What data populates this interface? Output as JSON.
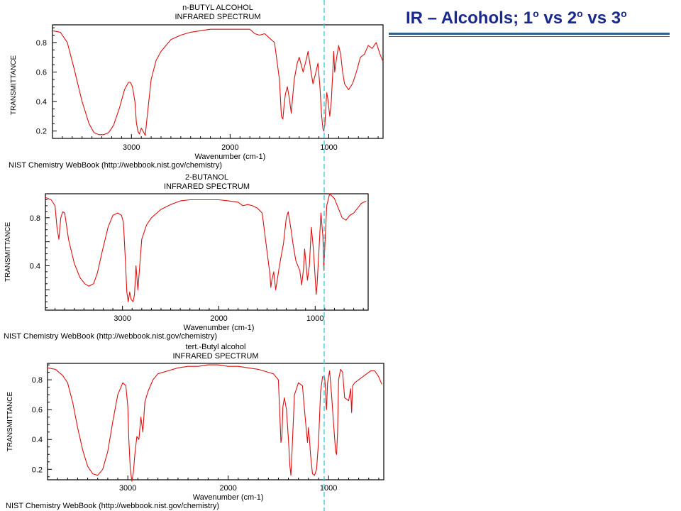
{
  "slide": {
    "title_main": "IR – Alcohols; 1",
    "title_sup1": "o",
    "title_mid1": " vs 2",
    "title_sup2": "o",
    "title_mid2": " vs 3",
    "title_sup3": "o",
    "accent_color": "#1a2a8c",
    "rule_color": "#2f5f8a",
    "marker_line": {
      "wavenumber": 1000,
      "color": "#2ec9d6",
      "style": "dashed"
    }
  },
  "chart_data": [
    {
      "type": "line",
      "title": "n-BUTYL ALCOHOL",
      "subtitle": "INFRARED SPECTRUM",
      "xlabel": "Wavenumber (cm-1)",
      "ylabel": "TRANSMITTANCE",
      "source": "NIST Chemistry WebBook (http://webbook.nist.gov/chemistry)",
      "xlim": [
        3800,
        450
      ],
      "ylim": [
        0.15,
        0.92
      ],
      "xticks": [
        3000,
        2000,
        1000
      ],
      "yticks": [
        0.2,
        0.4,
        0.6,
        0.8
      ],
      "ytick_labels": [
        "0.2",
        "0.4",
        "0.6",
        "0.8"
      ],
      "line_color": "#dd1111",
      "x": [
        3800,
        3720,
        3650,
        3580,
        3500,
        3430,
        3380,
        3330,
        3280,
        3230,
        3180,
        3120,
        3070,
        3030,
        3010,
        2990,
        2965,
        2950,
        2935,
        2920,
        2900,
        2875,
        2860,
        2840,
        2800,
        2750,
        2700,
        2600,
        2500,
        2400,
        2300,
        2200,
        2100,
        2000,
        1900,
        1800,
        1750,
        1700,
        1650,
        1600,
        1550,
        1500,
        1480,
        1465,
        1455,
        1440,
        1420,
        1400,
        1380,
        1370,
        1350,
        1320,
        1300,
        1260,
        1230,
        1210,
        1180,
        1160,
        1130,
        1110,
        1090,
        1075,
        1060,
        1050,
        1040,
        1030,
        1020,
        1010,
        990,
        975,
        960,
        950,
        940,
        920,
        900,
        880,
        860,
        840,
        800,
        760,
        720,
        680,
        640,
        600,
        560,
        520,
        480,
        450
      ],
      "y": [
        0.88,
        0.87,
        0.8,
        0.62,
        0.4,
        0.25,
        0.19,
        0.175,
        0.175,
        0.19,
        0.24,
        0.36,
        0.48,
        0.53,
        0.53,
        0.5,
        0.4,
        0.26,
        0.2,
        0.18,
        0.22,
        0.19,
        0.17,
        0.3,
        0.55,
        0.68,
        0.74,
        0.82,
        0.85,
        0.87,
        0.88,
        0.89,
        0.89,
        0.89,
        0.89,
        0.89,
        0.86,
        0.85,
        0.86,
        0.83,
        0.8,
        0.55,
        0.3,
        0.28,
        0.36,
        0.45,
        0.5,
        0.42,
        0.32,
        0.4,
        0.55,
        0.66,
        0.7,
        0.6,
        0.68,
        0.74,
        0.6,
        0.52,
        0.6,
        0.66,
        0.5,
        0.32,
        0.22,
        0.2,
        0.24,
        0.36,
        0.46,
        0.42,
        0.3,
        0.4,
        0.6,
        0.74,
        0.6,
        0.7,
        0.78,
        0.72,
        0.6,
        0.52,
        0.48,
        0.52,
        0.6,
        0.7,
        0.72,
        0.78,
        0.76,
        0.8,
        0.72,
        0.67
      ]
    },
    {
      "type": "line",
      "title": "2-BUTANOL",
      "subtitle": "INFRARED SPECTRUM",
      "xlabel": "Wavenumber (cm-1)",
      "ylabel": "TRANSMITTANCE",
      "source": "NIST Chemistry WebBook (http://webbook.nist.gov/chemistry)",
      "xlim": [
        3800,
        450
      ],
      "ylim": [
        0.03,
        1.0
      ],
      "xticks": [
        3000,
        2000,
        1000
      ],
      "yticks": [
        0.4,
        0.8
      ],
      "ytick_labels": [
        "0.4",
        "0.8"
      ],
      "line_color": "#dd1111",
      "x": [
        3800,
        3740,
        3700,
        3680,
        3660,
        3640,
        3620,
        3600,
        3560,
        3500,
        3440,
        3390,
        3350,
        3300,
        3260,
        3210,
        3150,
        3100,
        3050,
        3010,
        2990,
        2970,
        2955,
        2940,
        2925,
        2910,
        2890,
        2875,
        2860,
        2840,
        2800,
        2750,
        2700,
        2600,
        2500,
        2400,
        2300,
        2200,
        2100,
        2000,
        1900,
        1800,
        1750,
        1700,
        1650,
        1600,
        1550,
        1500,
        1470,
        1460,
        1450,
        1430,
        1410,
        1390,
        1375,
        1360,
        1330,
        1300,
        1280,
        1250,
        1230,
        1200,
        1160,
        1140,
        1120,
        1110,
        1100,
        1080,
        1060,
        1040,
        1020,
        1000,
        990,
        980,
        960,
        940,
        920,
        910,
        900,
        880,
        850,
        800,
        760,
        720,
        680,
        640,
        600,
        560,
        520,
        470
      ],
      "y": [
        0.97,
        0.95,
        0.9,
        0.72,
        0.62,
        0.8,
        0.85,
        0.84,
        0.62,
        0.42,
        0.3,
        0.25,
        0.23,
        0.25,
        0.34,
        0.52,
        0.72,
        0.82,
        0.84,
        0.82,
        0.76,
        0.45,
        0.18,
        0.1,
        0.18,
        0.12,
        0.1,
        0.16,
        0.4,
        0.2,
        0.62,
        0.74,
        0.8,
        0.87,
        0.91,
        0.94,
        0.95,
        0.95,
        0.95,
        0.95,
        0.94,
        0.93,
        0.9,
        0.91,
        0.9,
        0.88,
        0.84,
        0.52,
        0.33,
        0.22,
        0.28,
        0.35,
        0.2,
        0.3,
        0.38,
        0.45,
        0.58,
        0.8,
        0.85,
        0.7,
        0.58,
        0.44,
        0.36,
        0.24,
        0.38,
        0.54,
        0.46,
        0.28,
        0.4,
        0.72,
        0.55,
        0.3,
        0.16,
        0.24,
        0.54,
        0.84,
        0.64,
        0.36,
        0.56,
        0.9,
        1.0,
        0.96,
        0.88,
        0.8,
        0.78,
        0.82,
        0.84,
        0.88,
        0.92,
        0.94
      ]
    },
    {
      "type": "line",
      "title": "tert.-Butyl alcohol",
      "subtitle": "INFRARED SPECTRUM",
      "xlabel": "Wavenumber (cm-1)",
      "ylabel": "TRANSMITTANCE",
      "source": "NIST Chemistry WebBook (http://webbook.nist.gov/chemistry)",
      "xlim": [
        3800,
        450
      ],
      "ylim": [
        0.13,
        0.91
      ],
      "xticks": [
        3000,
        2000,
        1000
      ],
      "yticks": [
        0.2,
        0.4,
        0.6,
        0.8
      ],
      "ytick_labels": [
        "0.2",
        "0.4",
        "0.6",
        "0.8"
      ],
      "line_color": "#dd1111",
      "x": [
        3800,
        3720,
        3650,
        3600,
        3550,
        3500,
        3450,
        3400,
        3350,
        3300,
        3250,
        3200,
        3150,
        3100,
        3050,
        3020,
        3000,
        2990,
        2975,
        2960,
        2945,
        2930,
        2910,
        2890,
        2870,
        2850,
        2830,
        2800,
        2750,
        2700,
        2600,
        2500,
        2400,
        2300,
        2200,
        2100,
        2000,
        1900,
        1800,
        1700,
        1600,
        1550,
        1500,
        1485,
        1475,
        1465,
        1455,
        1440,
        1420,
        1400,
        1385,
        1375,
        1365,
        1340,
        1300,
        1260,
        1240,
        1220,
        1210,
        1200,
        1190,
        1180,
        1160,
        1140,
        1120,
        1100,
        1080,
        1060,
        1040,
        1030,
        1025,
        1020,
        1010,
        990,
        970,
        950,
        930,
        920,
        910,
        900,
        880,
        860,
        840,
        800,
        780,
        770,
        760,
        740,
        700,
        660,
        620,
        580,
        540,
        500,
        470
      ],
      "y": [
        0.88,
        0.87,
        0.83,
        0.78,
        0.65,
        0.48,
        0.33,
        0.22,
        0.17,
        0.16,
        0.2,
        0.32,
        0.52,
        0.7,
        0.78,
        0.76,
        0.62,
        0.4,
        0.2,
        0.12,
        0.18,
        0.3,
        0.42,
        0.4,
        0.55,
        0.45,
        0.65,
        0.72,
        0.8,
        0.84,
        0.86,
        0.88,
        0.89,
        0.89,
        0.9,
        0.9,
        0.89,
        0.89,
        0.88,
        0.87,
        0.85,
        0.84,
        0.8,
        0.55,
        0.38,
        0.42,
        0.62,
        0.68,
        0.6,
        0.4,
        0.22,
        0.16,
        0.3,
        0.7,
        0.78,
        0.76,
        0.6,
        0.45,
        0.38,
        0.48,
        0.4,
        0.3,
        0.17,
        0.16,
        0.2,
        0.38,
        0.72,
        0.82,
        0.82,
        0.74,
        0.64,
        0.6,
        0.78,
        0.86,
        0.7,
        0.5,
        0.32,
        0.3,
        0.45,
        0.8,
        0.87,
        0.85,
        0.68,
        0.66,
        0.74,
        0.58,
        0.76,
        0.78,
        0.8,
        0.82,
        0.84,
        0.86,
        0.86,
        0.82,
        0.77
      ]
    }
  ]
}
